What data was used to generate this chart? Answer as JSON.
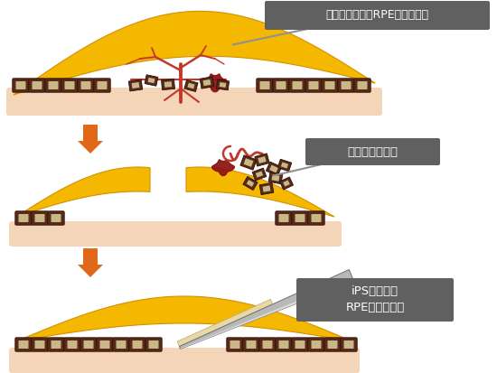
{
  "bg_color": "#ffffff",
  "skin_color": "#f5d5b8",
  "yellow_color": "#f5b800",
  "yellow_dark": "#d49000",
  "rpe_dark": "#5a2a18",
  "rpe_light": "#c8b888",
  "vessel_color": "#c0392b",
  "vessel_dark": "#8b1010",
  "arrow_color": "#e06818",
  "label_bg": "#606060",
  "label_text": "#ffffff",
  "label1": "網膜色素上皮（RPE）細胞傷害",
  "label2": "新生血管抜去術",
  "label3": "iPS細胞由来\nRPEシート移植",
  "blade_color": "#b8b8b8",
  "blade_dark": "#707070",
  "blade_light": "#e0e0e0",
  "sheet_color": "#e8d8a8",
  "sheet_edge": "#c0a860"
}
